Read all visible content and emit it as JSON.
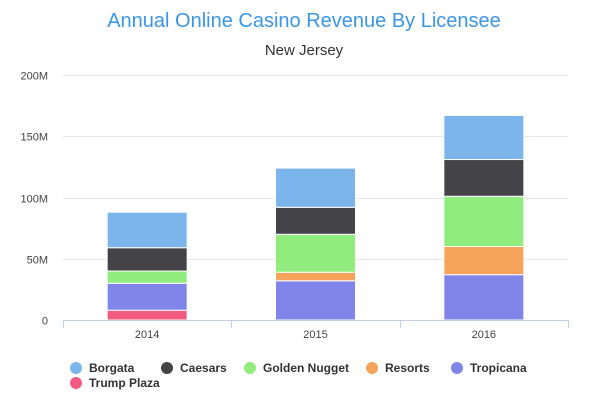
{
  "chart_data": {
    "type": "bar",
    "stacked": true,
    "title": "Annual Online Casino Revenue By Licensee",
    "subtitle": "New Jersey",
    "xlabel": "",
    "ylabel": "",
    "categories": [
      "2014",
      "2015",
      "2016"
    ],
    "ylim": [
      0,
      200000000
    ],
    "yticks": [
      {
        "value": 0,
        "label": "0"
      },
      {
        "value": 50000000,
        "label": "50M"
      },
      {
        "value": 100000000,
        "label": "100M"
      },
      {
        "value": 150000000,
        "label": "150M"
      },
      {
        "value": 200000000,
        "label": "200M"
      }
    ],
    "grid": true,
    "legend_position": "bottom-left",
    "series": [
      {
        "name": "Borgata",
        "color": "#7cb5ec",
        "values": [
          29000000,
          32000000,
          36000000
        ]
      },
      {
        "name": "Caesars",
        "color": "#434348",
        "values": [
          19000000,
          22000000,
          30000000
        ]
      },
      {
        "name": "Golden Nugget",
        "color": "#90ed7d",
        "values": [
          10000000,
          31000000,
          41000000
        ]
      },
      {
        "name": "Resorts",
        "color": "#f7a35c",
        "values": [
          0,
          7000000,
          23000000
        ]
      },
      {
        "name": "Tropicana",
        "color": "#8085e9",
        "values": [
          22000000,
          32000000,
          37000000
        ]
      },
      {
        "name": "Trump Plaza",
        "color": "#f15c80",
        "values": [
          8000000,
          0,
          0
        ]
      }
    ]
  }
}
